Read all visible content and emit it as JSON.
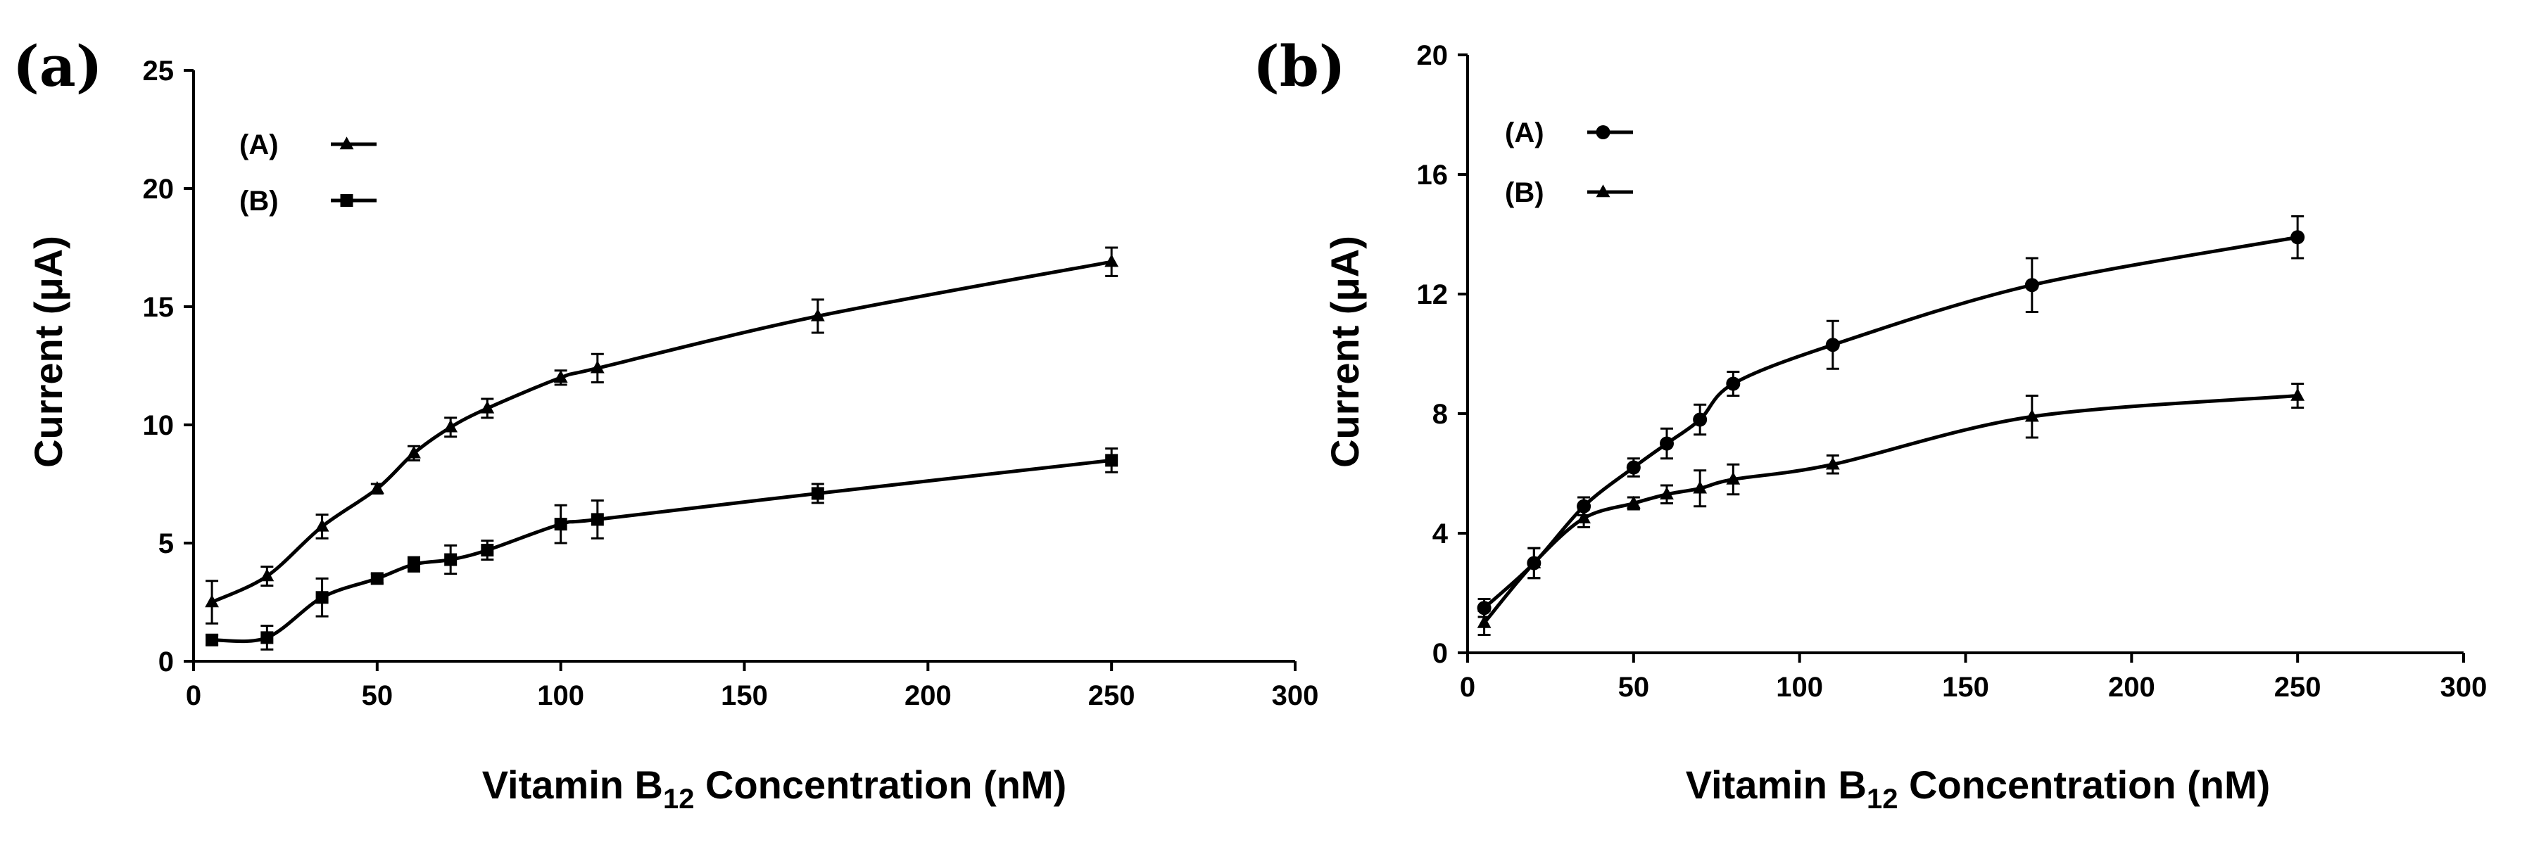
{
  "figure": {
    "panels": [
      {
        "id": "a",
        "label": "(a)"
      },
      {
        "id": "b",
        "label": "(b)"
      }
    ]
  },
  "chart_data": [
    {
      "panel": "(a)",
      "type": "line",
      "xlabel_prefix": "Vitamin B",
      "xlabel_sub": "12",
      "xlabel_suffix": " Concentration (nM)",
      "ylabel": "Current (μA)",
      "xlim": [
        0,
        300
      ],
      "ylim": [
        0,
        25
      ],
      "xticks": [
        0,
        50,
        100,
        150,
        200,
        250,
        300
      ],
      "yticks": [
        0,
        5,
        10,
        15,
        20,
        25
      ],
      "legend_position": "top-left",
      "series": [
        {
          "name": "(A)",
          "marker": "triangle",
          "x": [
            5,
            20,
            35,
            50,
            60,
            70,
            80,
            100,
            110,
            170,
            250
          ],
          "y": [
            2.5,
            3.6,
            5.7,
            7.3,
            8.8,
            9.9,
            10.7,
            12.0,
            12.4,
            14.6,
            16.9
          ],
          "err": [
            0.9,
            0.4,
            0.5,
            0.2,
            0.3,
            0.4,
            0.4,
            0.3,
            0.6,
            0.7,
            0.6
          ]
        },
        {
          "name": "(B)",
          "marker": "square",
          "x": [
            5,
            20,
            35,
            50,
            60,
            70,
            80,
            100,
            110,
            170,
            250
          ],
          "y": [
            0.9,
            1.0,
            2.7,
            3.5,
            4.1,
            4.3,
            4.7,
            5.8,
            6.0,
            7.1,
            8.5
          ],
          "err": [
            0.2,
            0.5,
            0.8,
            0.2,
            0.3,
            0.6,
            0.4,
            0.8,
            0.8,
            0.4,
            0.5
          ]
        }
      ]
    },
    {
      "panel": "(b)",
      "type": "line",
      "xlabel_prefix": "Vitamin B",
      "xlabel_sub": "12",
      "xlabel_suffix": " Concentration (nM)",
      "ylabel": "Current (μA)",
      "xlim": [
        0,
        300
      ],
      "ylim": [
        0,
        20
      ],
      "xticks": [
        0,
        50,
        100,
        150,
        200,
        250,
        300
      ],
      "yticks": [
        0,
        4,
        8,
        12,
        16,
        20
      ],
      "legend_position": "top-left",
      "series": [
        {
          "name": "(A)",
          "marker": "circle",
          "x": [
            5,
            20,
            35,
            50,
            60,
            70,
            80,
            110,
            170,
            250
          ],
          "y": [
            1.5,
            3.0,
            4.9,
            6.2,
            7.0,
            7.8,
            9.0,
            10.3,
            12.3,
            13.9
          ],
          "err": [
            0.3,
            0.5,
            0.3,
            0.3,
            0.5,
            0.5,
            0.4,
            0.8,
            0.9,
            0.7
          ]
        },
        {
          "name": "(B)",
          "marker": "triangle",
          "x": [
            5,
            20,
            35,
            50,
            60,
            70,
            80,
            110,
            170,
            250
          ],
          "y": [
            1.0,
            3.0,
            4.5,
            5.0,
            5.3,
            5.5,
            5.8,
            6.3,
            7.9,
            8.6
          ],
          "err": [
            0.4,
            0.5,
            0.3,
            0.2,
            0.3,
            0.6,
            0.5,
            0.3,
            0.7,
            0.4
          ]
        }
      ]
    }
  ]
}
